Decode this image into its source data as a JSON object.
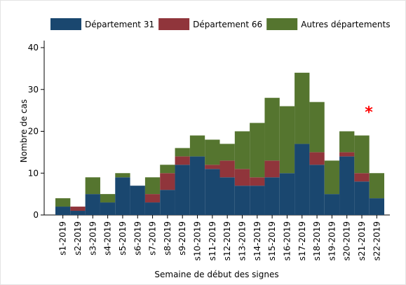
{
  "chart_data": {
    "type": "stacked_bar",
    "x_label": "Semaine de début des signes",
    "y_label": "Nombre de cas",
    "categories": [
      "s1-2019",
      "s2-2019",
      "s3-2019",
      "s4-2019",
      "s5-2019",
      "s6-2019",
      "s7-2019",
      "s8-2019",
      "s9-2019",
      "s10-2019",
      "s11-2019",
      "s12-2019",
      "s13-2019",
      "s14-2019",
      "s15-2019",
      "s16-2019",
      "s17-2019",
      "s18-2019",
      "s19-2019",
      "s20-2019",
      "s21-2019",
      "s22-2019"
    ],
    "series": [
      {
        "name": "Département 31",
        "color": "#1a476f",
        "values": [
          2,
          1,
          5,
          3,
          9,
          7,
          3,
          6,
          12,
          14,
          11,
          9,
          7,
          7,
          9,
          10,
          17,
          12,
          5,
          14,
          8,
          4
        ]
      },
      {
        "name": "Département 66",
        "color": "#90353b",
        "values": [
          0,
          1,
          0,
          0,
          0,
          0,
          2,
          4,
          2,
          0,
          1,
          4,
          4,
          2,
          4,
          0,
          0,
          3,
          0,
          1,
          2,
          0
        ]
      },
      {
        "name": "Autres départements",
        "color": "#55752f",
        "values": [
          2,
          0,
          4,
          2,
          1,
          0,
          4,
          2,
          2,
          5,
          6,
          4,
          9,
          13,
          15,
          16,
          17,
          12,
          8,
          5,
          9,
          6
        ]
      }
    ],
    "ylim": [
      0,
      40
    ],
    "yticks": [
      0,
      10,
      20,
      30,
      40
    ],
    "grid": false,
    "annotations": [
      {
        "text": "*",
        "category": 20,
        "y": 25,
        "color": "#ff0000"
      }
    ]
  }
}
